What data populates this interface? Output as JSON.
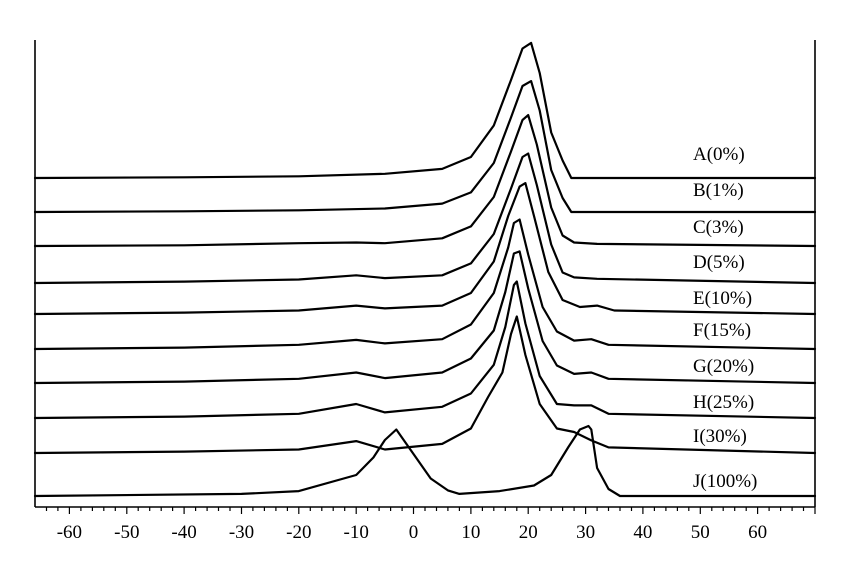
{
  "chart_data": {
    "type": "line",
    "title": "",
    "xlabel": "",
    "ylabel": "",
    "xlim": [
      -66,
      70
    ],
    "grid": false,
    "legend": "labels at right of each curve",
    "x_tick_labels": [
      "-60",
      "-50",
      "-40",
      "-30",
      "-20",
      "-10",
      "0",
      "10",
      "20",
      "30",
      "40",
      "50",
      "60"
    ],
    "series": [
      {
        "name": "A(0%)",
        "x": [
          -66,
          -40,
          -20,
          -5,
          5,
          10,
          14,
          17,
          19,
          20.5,
          22,
          24,
          26,
          27.5,
          40,
          70
        ],
        "y": [
          0.0,
          0.01,
          0.025,
          0.06,
          0.13,
          0.3,
          0.75,
          1.4,
          1.85,
          1.93,
          1.5,
          0.65,
          0.25,
          0.0,
          0.0,
          0.0
        ]
      },
      {
        "name": "B(1%)",
        "x": [
          -66,
          -40,
          -20,
          -5,
          5,
          10,
          14,
          17,
          19,
          20.5,
          22,
          24,
          26,
          27.5,
          40,
          70
        ],
        "y": [
          0.0,
          0.01,
          0.025,
          0.05,
          0.12,
          0.28,
          0.7,
          1.35,
          1.8,
          1.87,
          1.45,
          0.6,
          0.2,
          0.0,
          0.0,
          0.0
        ]
      },
      {
        "name": "C(3%)",
        "x": [
          -66,
          -40,
          -20,
          -10,
          -5,
          5,
          10,
          14,
          17,
          19,
          20,
          21.5,
          24,
          26,
          28,
          32,
          70
        ],
        "y": [
          0.0,
          0.01,
          0.04,
          0.05,
          0.04,
          0.11,
          0.28,
          0.7,
          1.35,
          1.8,
          1.87,
          1.45,
          0.55,
          0.15,
          0.05,
          0.03,
          0.0
        ]
      },
      {
        "name": "D(5%)",
        "x": [
          -66,
          -40,
          -20,
          -10,
          -5,
          5,
          10,
          14,
          17,
          19,
          20,
          21.5,
          24,
          26,
          28,
          32,
          70
        ],
        "y": [
          0.0,
          0.02,
          0.05,
          0.11,
          0.07,
          0.11,
          0.28,
          0.7,
          1.35,
          1.8,
          1.85,
          1.4,
          0.55,
          0.15,
          0.08,
          0.06,
          0.0
        ]
      },
      {
        "name": "E(10%)",
        "x": [
          -66,
          -40,
          -20,
          -10,
          -5,
          5,
          10,
          14,
          16.5,
          18.5,
          19.5,
          21,
          23.5,
          26,
          29,
          32,
          35,
          70
        ],
        "y": [
          0.0,
          0.02,
          0.05,
          0.12,
          0.08,
          0.12,
          0.3,
          0.75,
          1.4,
          1.82,
          1.87,
          1.4,
          0.6,
          0.2,
          0.1,
          0.12,
          0.05,
          0.0
        ]
      },
      {
        "name": "F(15%)",
        "x": [
          -66,
          -40,
          -20,
          -10,
          -5,
          5,
          10,
          14,
          16.5,
          17.5,
          18.5,
          20,
          22.5,
          25,
          28,
          31,
          34,
          70
        ],
        "y": [
          0.0,
          0.02,
          0.06,
          0.13,
          0.08,
          0.14,
          0.35,
          0.8,
          1.45,
          1.8,
          1.85,
          1.35,
          0.6,
          0.25,
          0.12,
          0.14,
          0.06,
          0.0
        ]
      },
      {
        "name": "G(20%)",
        "x": [
          -66,
          -40,
          -20,
          -10,
          -5,
          5,
          10,
          14,
          16,
          17.5,
          18.5,
          20,
          22.5,
          25,
          28,
          31,
          34,
          70
        ],
        "y": [
          0.0,
          0.02,
          0.06,
          0.15,
          0.07,
          0.15,
          0.35,
          0.75,
          1.3,
          1.85,
          1.88,
          1.35,
          0.6,
          0.25,
          0.13,
          0.15,
          0.06,
          0.0
        ]
      },
      {
        "name": "H(25%)",
        "x": [
          -66,
          -40,
          -20,
          -10,
          -5,
          5,
          10,
          14,
          16,
          17.5,
          18,
          19.5,
          22,
          25,
          28,
          31,
          34,
          70
        ],
        "y": [
          0.0,
          0.02,
          0.06,
          0.2,
          0.08,
          0.16,
          0.35,
          0.76,
          1.3,
          1.9,
          1.95,
          1.35,
          0.6,
          0.2,
          0.18,
          0.18,
          0.06,
          0.0
        ]
      },
      {
        "name": "I(30%)",
        "x": [
          -66,
          -40,
          -20,
          -10,
          -5,
          5,
          10,
          13,
          15.5,
          17,
          18,
          19.5,
          22,
          25,
          28,
          31,
          34,
          70
        ],
        "y": [
          0.0,
          0.02,
          0.05,
          0.17,
          0.05,
          0.13,
          0.35,
          0.8,
          1.15,
          1.7,
          1.95,
          1.4,
          0.7,
          0.35,
          0.3,
          0.18,
          0.08,
          0.0
        ]
      },
      {
        "name": "J(100%)",
        "x": [
          -66,
          -30,
          -20,
          -10,
          -7,
          -5,
          -3,
          0,
          3,
          6,
          8,
          15,
          21,
          24,
          27,
          29,
          30.5,
          31,
          32,
          34,
          36,
          70
        ],
        "y": [
          0.0,
          0.03,
          0.07,
          0.3,
          0.55,
          0.8,
          0.95,
          0.6,
          0.25,
          0.08,
          0.03,
          0.07,
          0.15,
          0.3,
          0.7,
          0.95,
          1.0,
          0.95,
          0.4,
          0.1,
          0.0,
          0.0
        ]
      }
    ]
  }
}
